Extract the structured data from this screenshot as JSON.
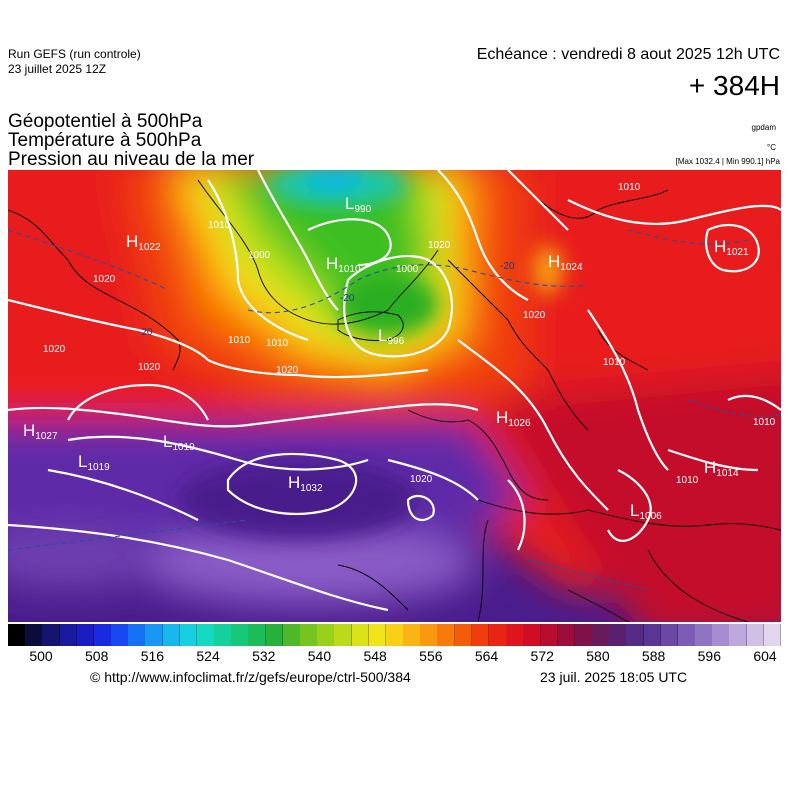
{
  "header": {
    "run_line1": "Run GEFS (run controle)",
    "run_line2": "23 juillet 2025 12Z",
    "valid": "Echéance : vendredi 8 aout 2025 12h UTC",
    "lead": "+ 384H"
  },
  "titles": {
    "line1": "Géopotentiel à 500hPa",
    "line2": "Température à 500hPa",
    "line3": "Pression au niveau de la mer"
  },
  "units": {
    "gpdam": "gpdam",
    "celsius": "°C",
    "range": "[Max 1032.4 | Min 990.1] hPa"
  },
  "map": {
    "pressure_centers": [
      {
        "type": "H",
        "value": "1022"
      },
      {
        "type": "L",
        "value": "990"
      },
      {
        "type": "H",
        "value": "1010"
      },
      {
        "type": "L",
        "value": "996"
      },
      {
        "type": "H",
        "value": "1021"
      },
      {
        "type": "H",
        "value": "1024"
      },
      {
        "type": "H",
        "value": "1027"
      },
      {
        "type": "L",
        "value": "1019"
      },
      {
        "type": "L",
        "value": "1019"
      },
      {
        "type": "H",
        "value": "1032"
      },
      {
        "type": "H",
        "value": "1026"
      },
      {
        "type": "H",
        "value": "1014"
      },
      {
        "type": "L",
        "value": "1006"
      }
    ],
    "isobar_labels": [
      "1020",
      "1020",
      "1020",
      "1010",
      "1000",
      "1000",
      "1010",
      "1020",
      "1020",
      "1010",
      "1010",
      "1020",
      "1020",
      "1010",
      "1010",
      "1010"
    ],
    "temperature_labels": [
      "-20",
      "-20",
      "-20"
    ],
    "colors": {
      "purple_low": "#4a1c8c",
      "purple": "#5e2aa8",
      "lavender": "#8a5cc6",
      "red_dark": "#c4102a",
      "red": "#e81a1a",
      "orange_red": "#f03c10",
      "orange": "#fa7a06",
      "yellow": "#f6e21a",
      "lime": "#a8de1a",
      "green": "#3cbf20",
      "teal": "#18c8a8",
      "cyan": "#10b8e0"
    }
  },
  "colorbar": {
    "labels": [
      "500",
      "508",
      "516",
      "524",
      "532",
      "540",
      "548",
      "556",
      "564",
      "572",
      "580",
      "588",
      "596",
      "604"
    ],
    "colors": [
      "#000000",
      "#0c0c3c",
      "#14146e",
      "#1a1a9c",
      "#1c1cc4",
      "#1a2ae0",
      "#1848f0",
      "#1670f4",
      "#1898f4",
      "#18b8ee",
      "#16d0e0",
      "#14d8c0",
      "#14d09c",
      "#18c87a",
      "#1cbc58",
      "#28b03c",
      "#4cb82a",
      "#74c422",
      "#98d01c",
      "#bcda1a",
      "#dce21a",
      "#f2e41a",
      "#f8d018",
      "#fab414",
      "#fa9810",
      "#f87a0c",
      "#f45c0a",
      "#f03c0e",
      "#ea2414",
      "#e0141c",
      "#d00c26",
      "#b80c30",
      "#9c0c3c",
      "#7e1248",
      "#681a5c",
      "#5a2070",
      "#542a84",
      "#5a3694",
      "#6a48a4",
      "#7c5cb4",
      "#9074c4",
      "#a68cd0",
      "#bca8dc",
      "#d0c0e6",
      "#e2d6ee"
    ]
  },
  "footer": {
    "url": "© http://www.infoclimat.fr/z/gefs/europe/ctrl-500/384",
    "timestamp": "23 juil. 2025 18:05 UTC"
  }
}
